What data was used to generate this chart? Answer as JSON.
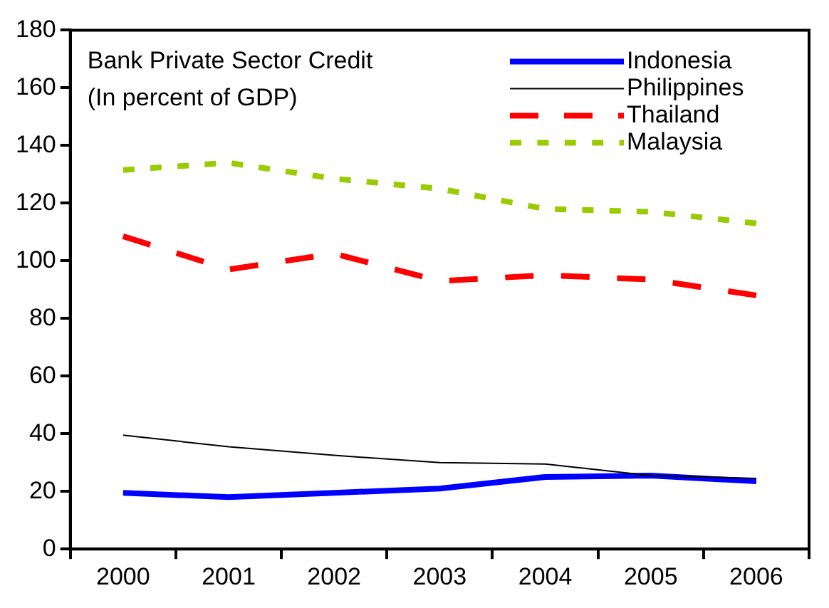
{
  "chart_data": {
    "type": "line",
    "title": "Bank Private Sector Credit",
    "subtitle": "(In percent of GDP)",
    "categories": [
      "2000",
      "2001",
      "2002",
      "2003",
      "2004",
      "2005",
      "2006"
    ],
    "series": [
      {
        "name": "Indonesia",
        "color": "#0000ff",
        "line_style": "solid",
        "values": [
          19.5,
          18,
          19.5,
          21,
          25,
          25.5,
          23.5
        ]
      },
      {
        "name": "Philippines",
        "color": "#000000",
        "line_style": "solid",
        "values": [
          39.5,
          35.5,
          32.5,
          30,
          29.5,
          25.5,
          24.5
        ]
      },
      {
        "name": "Thailand",
        "color": "#ff0000",
        "line_style": "dashed",
        "values": [
          108.5,
          97,
          102.5,
          93,
          95,
          93.5,
          88
        ]
      },
      {
        "name": "Malaysia",
        "color": "#99cc00",
        "line_style": "dotted",
        "values": [
          131.5,
          134,
          128.5,
          125,
          118,
          117,
          113
        ]
      }
    ],
    "ylim": [
      0,
      180
    ],
    "yticks": [
      0,
      20,
      40,
      60,
      80,
      100,
      120,
      140,
      160,
      180
    ],
    "grid": false,
    "legend": "top right",
    "marker": "none"
  }
}
